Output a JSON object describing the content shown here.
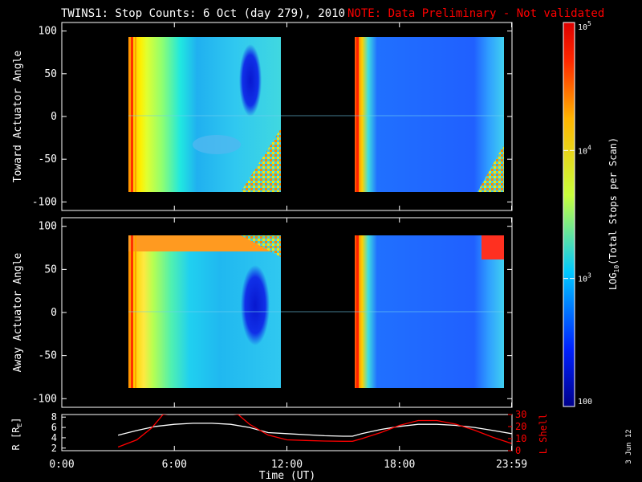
{
  "header": {
    "title": "TWINS1: Stop Counts:  6 Oct (day 279), 2010",
    "note": "NOTE: Data Preliminary - Not validated",
    "note_color": "#ff0000"
  },
  "side_date": "3 Jun 12",
  "chart_data": [
    {
      "type": "heatmap",
      "panel": "toward",
      "ylabel": "Toward Actuator Angle",
      "ylim": [
        -110,
        110
      ],
      "yticks": [
        "100",
        "50",
        "0",
        "-50",
        "-100"
      ],
      "xlim_hours": [
        0,
        24
      ],
      "data_intervals_hours": [
        [
          3.1,
          10.9
        ],
        [
          15.0,
          23.5
        ]
      ],
      "angle_range": [
        -90,
        90
      ],
      "description_of_levels": "log10 stop counts 2..5"
    },
    {
      "type": "heatmap",
      "panel": "away",
      "ylabel": "Away Actuator Angle",
      "ylim": [
        -110,
        110
      ],
      "yticks": [
        "100",
        "50",
        "0",
        "-50",
        "-100"
      ],
      "xlim_hours": [
        0,
        24
      ],
      "data_intervals_hours": [
        [
          3.1,
          10.9
        ],
        [
          15.0,
          23.5
        ]
      ],
      "angle_range": [
        -90,
        90
      ]
    },
    {
      "type": "line",
      "panel": "orbit",
      "ylabel_left": "R [R",
      "ylabel_left_sub": "E",
      "ylabel_left_end": "]",
      "ylabel_right": "L Shell",
      "ylim_left": [
        1.5,
        8.5
      ],
      "ylim_right": [
        0,
        30
      ],
      "yticks_left": [
        "8",
        "6",
        "4",
        "2"
      ],
      "yticks_right": [
        "30",
        "20",
        "10",
        "0"
      ],
      "xlabel": "Time (UT)",
      "xticks": [
        "0:00",
        "6:00",
        "12:00",
        "18:00",
        "23:59"
      ],
      "xtick_hours": [
        0,
        6,
        12,
        18,
        23.98
      ],
      "series": [
        {
          "axis": "left",
          "color": "#ffffff",
          "x": [
            3.0,
            4.0,
            5.0,
            6.0,
            7.0,
            8.0,
            9.0,
            10.0,
            11.0,
            12.0,
            13.0,
            14.0,
            15.0,
            15.5,
            16.0,
            17.0,
            18.0,
            19.0,
            20.0,
            21.0,
            22.0,
            23.0,
            23.98
          ],
          "y": [
            4.5,
            5.4,
            6.2,
            6.6,
            6.8,
            6.8,
            6.6,
            6.0,
            5.0,
            4.8,
            4.6,
            4.4,
            4.3,
            4.3,
            4.8,
            5.6,
            6.2,
            6.6,
            6.6,
            6.4,
            6.0,
            5.4,
            4.8
          ]
        },
        {
          "axis": "right",
          "color": "#ff0000",
          "x": [
            3.0,
            4.0,
            4.8,
            5.4,
            6.0,
            7.0,
            8.0,
            8.8,
            9.4,
            10.0,
            11.0,
            12.0,
            13.0,
            14.0,
            15.0,
            15.5,
            16.0,
            17.0,
            18.0,
            19.0,
            20.0,
            21.0,
            22.0,
            23.0,
            23.98
          ],
          "y": [
            3.0,
            9.0,
            19.0,
            30.0,
            31,
            31,
            31,
            31,
            30.0,
            22.0,
            13.0,
            9.0,
            8.5,
            8.0,
            7.8,
            7.8,
            10.0,
            15.0,
            21.0,
            25.0,
            25.0,
            22.0,
            17.0,
            11.0,
            6.0
          ]
        }
      ]
    }
  ],
  "colorbar": {
    "label": "LOG",
    "label_sub": "10",
    "label_rest": "(Total Stops per Scan)",
    "ticks": [
      {
        "base": "10",
        "exp": "5"
      },
      {
        "base": "10",
        "exp": "4"
      },
      {
        "base": "10",
        "exp": "3"
      },
      {
        "base": "100",
        "exp": ""
      }
    ],
    "levels": [
      5,
      4,
      3,
      2
    ],
    "stops": [
      "#00008b",
      "#0022ff",
      "#00c8ff",
      "#c8ff3c",
      "#ffb400",
      "#ff2800",
      "#dc0000"
    ]
  }
}
